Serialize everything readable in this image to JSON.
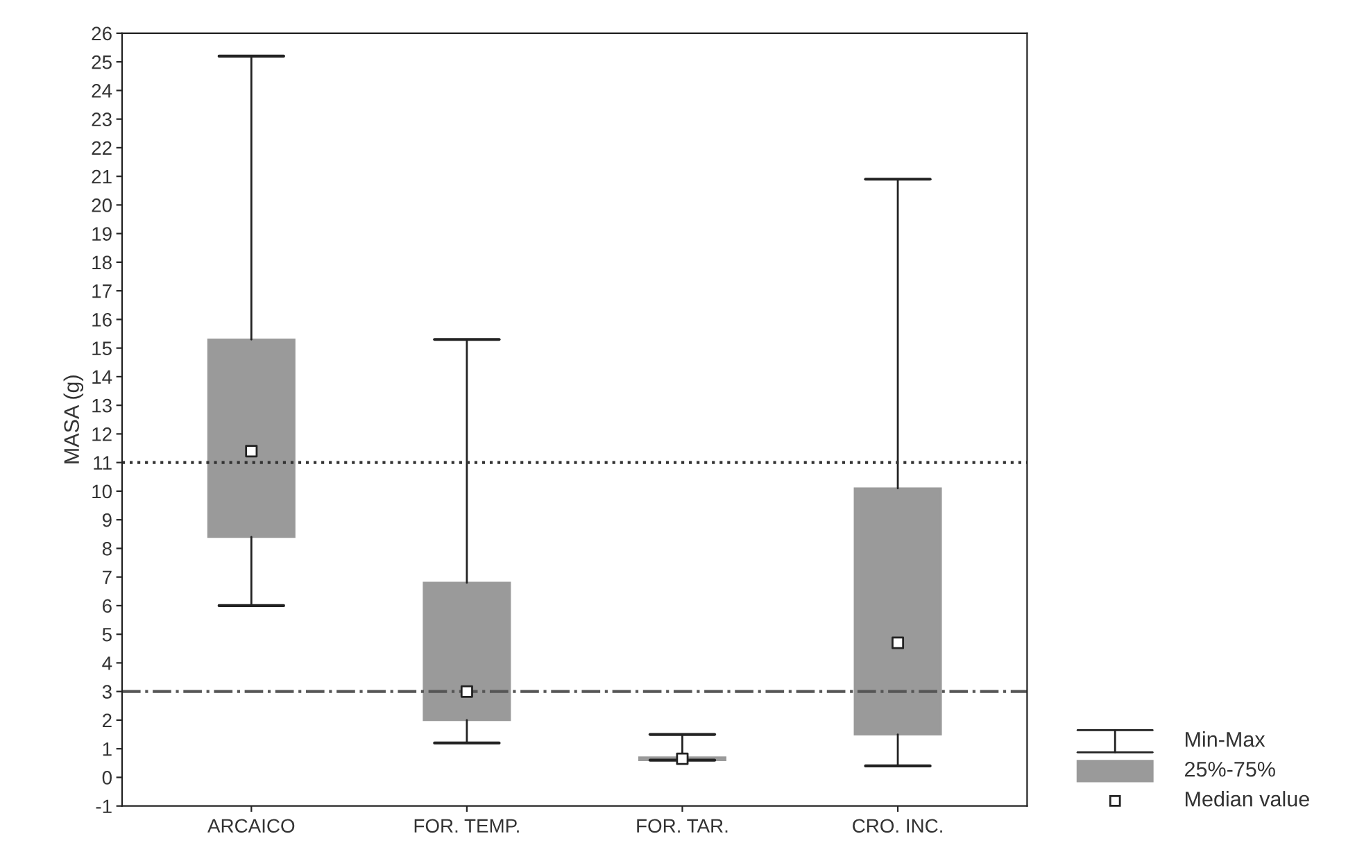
{
  "chart_data": {
    "type": "box",
    "ylabel": "MASA (g)",
    "categories": [
      "ARCAICO",
      "FOR. TEMP.",
      "FOR. TAR.",
      "CRO. INC."
    ],
    "boxes": [
      {
        "low": 6.0,
        "q1": 8.4,
        "median": 11.4,
        "q3": 15.3,
        "high": 25.2
      },
      {
        "low": 1.2,
        "q1": 2.0,
        "median": 3.0,
        "q3": 6.8,
        "high": 15.3
      },
      {
        "low": 0.6,
        "q1": 0.6,
        "median": 0.65,
        "q3": 0.7,
        "high": 1.5
      },
      {
        "low": 0.4,
        "q1": 1.5,
        "median": 4.7,
        "q3": 10.1,
        "high": 20.9
      }
    ],
    "color": "#9a9a9a",
    "ylim": [
      -1,
      26
    ],
    "yticks": [
      -1,
      0,
      1,
      2,
      3,
      4,
      5,
      6,
      7,
      8,
      9,
      10,
      11,
      12,
      13,
      14,
      15,
      16,
      17,
      18,
      19,
      20,
      21,
      22,
      23,
      24,
      25,
      26
    ],
    "ref_lines": [
      {
        "axis": "y",
        "value": 11,
        "label": null,
        "line_style": "dotted",
        "color": "#333333"
      },
      {
        "axis": "y",
        "value": 3,
        "label": null,
        "line_style": "dashdot",
        "color": "#555555"
      }
    ],
    "annotations": [
      "Min-Max",
      "25%-75%",
      "Median value"
    ],
    "grid": false
  }
}
